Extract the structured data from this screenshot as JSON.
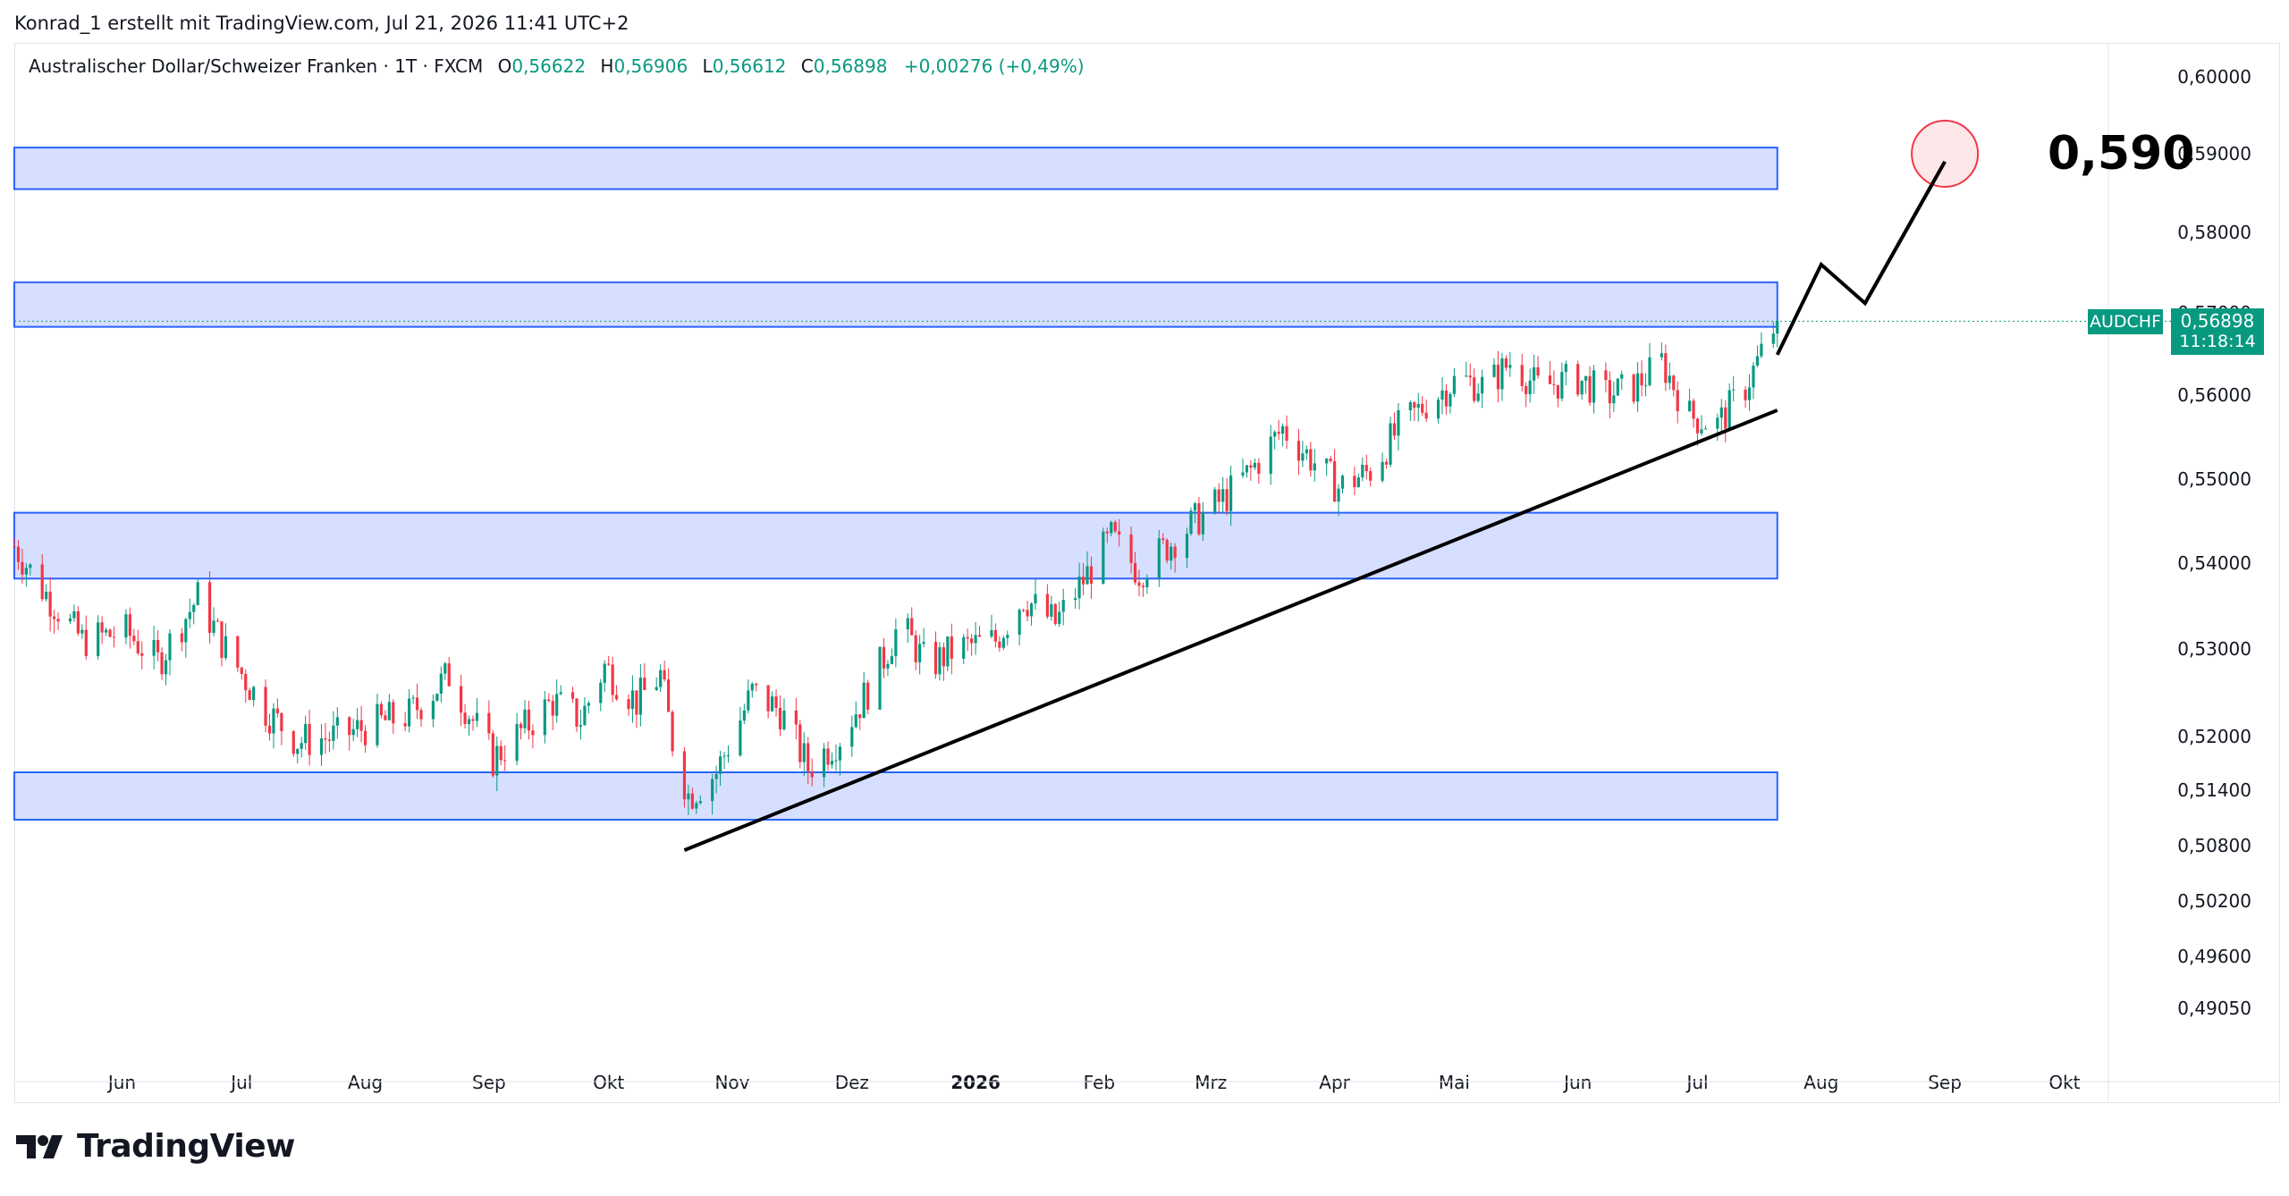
{
  "header": {
    "attribution": "Konrad_1 erstellt mit TradingView.com, Jul 21, 2026 11:41 UTC+2"
  },
  "legend": {
    "symbol": "Australischer Dollar/Schweizer Franken · 1T · FXCM",
    "open_label": "O",
    "open": "0,56622",
    "high_label": "H",
    "high": "0,56906",
    "low_label": "L",
    "low": "0,56612",
    "close_label": "C",
    "close": "0,56898",
    "change": "+0,00276 (+0,49%)"
  },
  "price_tag": {
    "ticker": "AUDCHF",
    "price": "0,56898",
    "countdown": "11:18:14"
  },
  "target_label": "0,590",
  "footer": {
    "brand": "TradingView"
  },
  "colors": {
    "up": "#089981",
    "down": "#f23645",
    "zone_fill": "#d1dcff",
    "zone_border": "#2962ff",
    "target_circle_fill": "#fde7e9",
    "target_circle_stroke": "#f23645",
    "price_tag": "#089981"
  },
  "chart_data": {
    "type": "candlestick",
    "y_ticks": [
      "0,60000",
      "0,59000",
      "0,58000",
      "0,57000",
      "0,56000",
      "0,55000",
      "0,54000",
      "0,53000",
      "0,52000",
      "0,51400",
      "0,50800",
      "0,50200",
      "0,49600",
      "0,49050"
    ],
    "x_ticks": [
      "Jun",
      "Jul",
      "Aug",
      "Sep",
      "Okt",
      "Nov",
      "Dez",
      "2026",
      "Feb",
      "Mrz",
      "Apr",
      "Mai",
      "Jun",
      "Jul",
      "Aug",
      "Sep",
      "Okt"
    ],
    "x_tick_bold": "2026",
    "x_range": [
      "2025-05-05",
      "2026-10-12"
    ],
    "last_close": 0.56898,
    "zones": [
      {
        "from": "2025-05-05",
        "to": "2026-07-21",
        "low": 0.5855,
        "high": 0.5908
      },
      {
        "from": "2025-05-05",
        "to": "2026-07-21",
        "low": 0.5683,
        "high": 0.5738
      },
      {
        "from": "2025-05-05",
        "to": "2026-07-21",
        "low": 0.5382,
        "high": 0.546
      },
      {
        "from": "2025-05-05",
        "to": "2026-07-21",
        "low": 0.5108,
        "high": 0.516
      }
    ],
    "trendline": [
      {
        "date": "2025-10-20",
        "price": 0.5075
      },
      {
        "date": "2026-07-21",
        "price": 0.5582
      }
    ],
    "projection": [
      {
        "date": "2026-07-21",
        "price": 0.5649
      },
      {
        "date": "2026-08-01",
        "price": 0.576
      },
      {
        "date": "2026-08-12",
        "price": 0.5712
      },
      {
        "date": "2026-09-01",
        "price": 0.589
      }
    ],
    "target": {
      "date": "2026-09-01",
      "price": 0.59
    },
    "path": [
      [
        "2025-05-05",
        0.542
      ],
      [
        "2025-05-12",
        0.537
      ],
      [
        "2025-05-22",
        0.531
      ],
      [
        "2025-06-02",
        0.532
      ],
      [
        "2025-06-10",
        0.5285
      ],
      [
        "2025-06-20",
        0.536
      ],
      [
        "2025-06-27",
        0.53
      ],
      [
        "2025-07-07",
        0.523
      ],
      [
        "2025-07-15",
        0.5195
      ],
      [
        "2025-07-25",
        0.52
      ],
      [
        "2025-08-04",
        0.5215
      ],
      [
        "2025-08-12",
        0.5225
      ],
      [
        "2025-08-22",
        0.527
      ],
      [
        "2025-09-02",
        0.5175
      ],
      [
        "2025-09-10",
        0.521
      ],
      [
        "2025-09-17",
        0.524
      ],
      [
        "2025-09-24",
        0.522
      ],
      [
        "2025-09-30",
        0.528
      ],
      [
        "2025-10-08",
        0.524
      ],
      [
        "2025-10-14",
        0.527
      ],
      [
        "2025-10-17",
        0.5195
      ],
      [
        "2025-10-21",
        0.5135
      ],
      [
        "2025-10-28",
        0.516
      ],
      [
        "2025-11-06",
        0.525
      ],
      [
        "2025-11-13",
        0.523
      ],
      [
        "2025-11-20",
        0.5165
      ],
      [
        "2025-11-28",
        0.52
      ],
      [
        "2025-12-06",
        0.526
      ],
      [
        "2025-12-13",
        0.533
      ],
      [
        "2025-12-20",
        0.528
      ],
      [
        "2025-12-27",
        0.53
      ],
      [
        "2026-01-06",
        0.531
      ],
      [
        "2026-01-13",
        0.536
      ],
      [
        "2026-01-21",
        0.533
      ],
      [
        "2026-01-28",
        0.538
      ],
      [
        "2026-02-04",
        0.543
      ],
      [
        "2026-02-11",
        0.539
      ],
      [
        "2026-02-18",
        0.542
      ],
      [
        "2026-02-25",
        0.545
      ],
      [
        "2026-03-05",
        0.548
      ],
      [
        "2026-03-11",
        0.551
      ],
      [
        "2026-03-19",
        0.556
      ],
      [
        "2026-03-25",
        0.553
      ],
      [
        "2026-04-02",
        0.549
      ],
      [
        "2026-04-10",
        0.551
      ],
      [
        "2026-04-17",
        0.556
      ],
      [
        "2026-04-24",
        0.559
      ],
      [
        "2026-05-02",
        0.562
      ],
      [
        "2026-05-09",
        0.561
      ],
      [
        "2026-05-15",
        0.564
      ],
      [
        "2026-05-22",
        0.561
      ],
      [
        "2026-06-01",
        0.562
      ],
      [
        "2026-06-08",
        0.56
      ],
      [
        "2026-06-15",
        0.561
      ],
      [
        "2026-06-22",
        0.564
      ],
      [
        "2026-06-29",
        0.5575
      ],
      [
        "2026-07-06",
        0.5565
      ],
      [
        "2026-07-13",
        0.561
      ],
      [
        "2026-07-21",
        0.569
      ]
    ]
  }
}
